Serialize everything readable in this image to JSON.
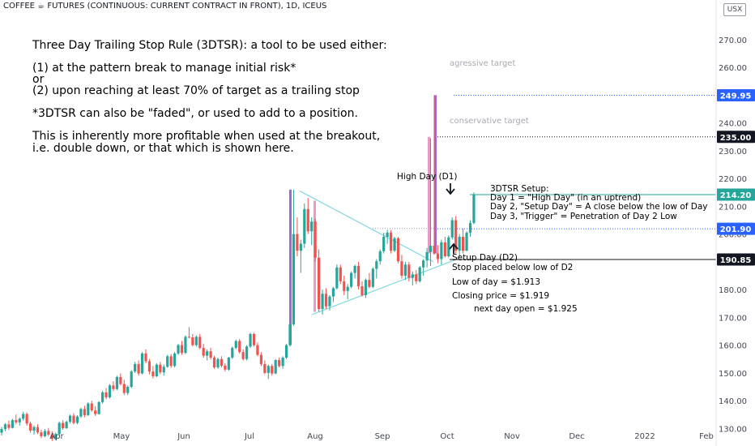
{
  "header": {
    "title": "COFFEE ☕ FUTURES (CONTINUOUS: CURRENT CONTRACT IN FRONT), 1D, ICEUS",
    "currency": "USX"
  },
  "notes": {
    "main_1": "Three Day Trailing Stop Rule (3DTSR): a tool to be used either:",
    "main_2": "(1) at the pattern break to manage initial risk*",
    "main_3": "or",
    "main_4": "(2) upon reaching at least 70% of target as a trailing stop",
    "main_5": "*3DTSR can also be \"faded\", or used to add to a position.",
    "main_6": "This is inherently more profitable when used at the breakout,",
    "main_7": "i.e. double down, or that which is shown here.",
    "aggressive": "agressive target",
    "conservative": "conservative target",
    "high_day": "High Day (D1)",
    "setup_1": "3DTSR Setup:",
    "setup_2": "Day 1 = \"High Day\" (in an uptrend)",
    "setup_3": "Day 2, \"Setup Day\" = A close below the low of Day",
    "setup_4": "Day 3, \"Trigger\" = Penetration of Day 2 Low",
    "d2_1": "Setup Day (D2)",
    "d2_2": "Stop placed below low of D2",
    "low_day": "Low of day = $1.913",
    "closing": "Closing price = $1.919",
    "next_open": "next day open = $1.925"
  },
  "chart_data": {
    "type": "candlestick",
    "title": "",
    "symbol": "Coffee Futures (Continuous: Current Contract in Front)",
    "interval": "1D",
    "exchange": "ICEUS",
    "y_unit": "USX",
    "ylim": [
      125,
      275
    ],
    "y_ticks": [
      130,
      140,
      150,
      160,
      170,
      180,
      190,
      200,
      210,
      220,
      230,
      240,
      250,
      260,
      270
    ],
    "y_tick_labels": [
      "130.00",
      "140.00",
      "150.00",
      "160.00",
      "170.00",
      "180.00",
      "190.00",
      "200.00",
      "210.00",
      "220.00",
      "230.00",
      "240.00",
      "250.00",
      "260.00",
      "270.00"
    ],
    "x_tick_labels": [
      "Apr",
      "May",
      "Jun",
      "Jul",
      "Aug",
      "Sep",
      "Oct",
      "Nov",
      "Dec",
      "2022",
      "Feb"
    ],
    "grid": false,
    "up_color": "#26a69a",
    "down_color": "#ef5350",
    "levels": [
      {
        "value": 249.95,
        "label": "249.95",
        "color": "#2962ff",
        "style": "dotted"
      },
      {
        "value": 235.0,
        "label": "235.00",
        "color": "#131722",
        "style": "dotted"
      },
      {
        "value": 214.2,
        "label": "214.20",
        "color": "#26a69a",
        "style": "solid"
      },
      {
        "value": 201.9,
        "label": "201.90",
        "color": "#2962ff",
        "style": "dotted"
      },
      {
        "value": 190.85,
        "label": "190.85",
        "color": "#131722",
        "style": "solid"
      }
    ],
    "pattern_color": "#7fd8e0",
    "pole_color": "#9c6ad6",
    "candles": [
      [
        128.5,
        130.5,
        127.5,
        129.8
      ],
      [
        129.8,
        132.0,
        129.0,
        131.5
      ],
      [
        131.5,
        132.8,
        129.5,
        130.2
      ],
      [
        130.2,
        133.5,
        130.0,
        133.0
      ],
      [
        133.0,
        135.0,
        131.5,
        132.2
      ],
      [
        132.2,
        134.0,
        131.0,
        133.5
      ],
      [
        133.5,
        136.0,
        132.8,
        135.2
      ],
      [
        135.2,
        135.8,
        131.0,
        131.8
      ],
      [
        131.8,
        132.5,
        128.5,
        129.2
      ],
      [
        129.2,
        131.0,
        127.8,
        130.5
      ],
      [
        130.5,
        131.5,
        128.0,
        128.6
      ],
      [
        128.6,
        129.5,
        126.5,
        127.2
      ],
      [
        127.2,
        129.8,
        126.8,
        129.1
      ],
      [
        129.1,
        130.2,
        127.2,
        127.8
      ],
      [
        127.8,
        129.0,
        125.5,
        126.2
      ],
      [
        126.2,
        128.5,
        125.8,
        128.0
      ],
      [
        128.0,
        132.5,
        127.5,
        132.0
      ],
      [
        132.0,
        133.0,
        129.5,
        130.1
      ],
      [
        130.1,
        132.8,
        129.8,
        132.4
      ],
      [
        132.4,
        135.0,
        131.8,
        134.6
      ],
      [
        134.6,
        135.5,
        131.5,
        132.0
      ],
      [
        132.0,
        134.8,
        131.5,
        134.3
      ],
      [
        134.3,
        137.5,
        133.8,
        137.0
      ],
      [
        137.0,
        138.2,
        134.0,
        134.8
      ],
      [
        134.8,
        139.5,
        134.5,
        139.0
      ],
      [
        139.0,
        140.0,
        136.0,
        136.5
      ],
      [
        136.5,
        138.0,
        134.5,
        135.2
      ],
      [
        135.2,
        139.8,
        135.0,
        139.5
      ],
      [
        139.5,
        143.5,
        139.0,
        143.0
      ],
      [
        143.0,
        144.5,
        140.5,
        141.2
      ],
      [
        141.2,
        146.0,
        140.8,
        145.5
      ],
      [
        145.5,
        147.0,
        143.5,
        144.2
      ],
      [
        144.2,
        149.0,
        143.8,
        148.5
      ],
      [
        148.5,
        149.8,
        145.5,
        146.0
      ],
      [
        146.0,
        147.5,
        142.0,
        142.8
      ],
      [
        142.8,
        145.5,
        142.0,
        145.0
      ],
      [
        145.0,
        151.0,
        144.5,
        150.5
      ],
      [
        150.5,
        154.0,
        150.0,
        153.2
      ],
      [
        153.2,
        154.5,
        149.0,
        149.8
      ],
      [
        149.8,
        157.5,
        149.5,
        157.0
      ],
      [
        157.0,
        158.5,
        153.5,
        154.2
      ],
      [
        154.2,
        155.0,
        149.5,
        150.5
      ],
      [
        150.5,
        152.5,
        148.0,
        148.8
      ],
      [
        148.8,
        153.5,
        148.5,
        153.0
      ],
      [
        153.0,
        154.0,
        149.5,
        150.2
      ],
      [
        150.2,
        153.0,
        149.0,
        152.2
      ],
      [
        152.2,
        156.5,
        151.8,
        156.0
      ],
      [
        156.0,
        156.8,
        151.8,
        152.5
      ],
      [
        152.5,
        157.5,
        152.0,
        157.0
      ],
      [
        157.0,
        160.5,
        156.5,
        160.0
      ],
      [
        160.0,
        161.5,
        156.5,
        157.2
      ],
      [
        157.2,
        163.5,
        156.8,
        163.0
      ],
      [
        163.0,
        166.5,
        162.5,
        162.8
      ],
      [
        162.8,
        164.0,
        159.5,
        160.0
      ],
      [
        160.0,
        163.5,
        159.5,
        163.0
      ],
      [
        163.0,
        164.0,
        158.5,
        159.0
      ],
      [
        159.0,
        160.5,
        155.5,
        156.2
      ],
      [
        156.2,
        158.5,
        154.5,
        157.8
      ],
      [
        157.8,
        159.0,
        154.8,
        155.5
      ],
      [
        155.5,
        156.2,
        151.5,
        152.0
      ],
      [
        152.0,
        155.5,
        151.5,
        155.0
      ],
      [
        155.0,
        156.0,
        152.0,
        152.6
      ],
      [
        152.6,
        153.5,
        150.5,
        151.2
      ],
      [
        151.2,
        155.8,
        150.8,
        155.5
      ],
      [
        155.5,
        159.5,
        155.0,
        159.0
      ],
      [
        159.0,
        162.0,
        158.5,
        161.5
      ],
      [
        161.5,
        162.2,
        157.0,
        157.5
      ],
      [
        157.5,
        158.5,
        154.5,
        155.0
      ],
      [
        155.0,
        160.0,
        154.5,
        159.5
      ],
      [
        159.5,
        164.5,
        159.0,
        164.0
      ],
      [
        164.0,
        164.5,
        159.5,
        160.0
      ],
      [
        160.0,
        161.0,
        156.0,
        156.5
      ],
      [
        156.5,
        157.5,
        152.5,
        153.2
      ],
      [
        153.2,
        154.5,
        149.5,
        150.0
      ],
      [
        150.0,
        153.0,
        147.8,
        152.5
      ],
      [
        152.5,
        153.2,
        149.0,
        149.8
      ],
      [
        149.8,
        155.0,
        149.5,
        154.6
      ],
      [
        154.6,
        155.5,
        152.0,
        152.5
      ],
      [
        152.5,
        156.0,
        151.5,
        155.5
      ],
      [
        155.5,
        160.5,
        155.0,
        160.0
      ],
      [
        160.0,
        168.0,
        159.5,
        167.5
      ],
      [
        167.5,
        216.0,
        167.0,
        200.0
      ],
      [
        200.0,
        206.0,
        192.0,
        194.0
      ],
      [
        194.0,
        198.0,
        186.0,
        196.5
      ],
      [
        196.5,
        211.0,
        195.0,
        209.0
      ],
      [
        209.0,
        213.0,
        200.0,
        201.0
      ],
      [
        201.0,
        206.0,
        196.0,
        204.5
      ],
      [
        204.5,
        205.5,
        190.0,
        191.5
      ],
      [
        191.5,
        194.5,
        172.0,
        173.0
      ],
      [
        173.0,
        180.0,
        171.0,
        178.5
      ],
      [
        178.5,
        180.5,
        173.0,
        174.0
      ],
      [
        174.0,
        178.0,
        172.5,
        177.5
      ],
      [
        177.5,
        181.0,
        175.5,
        180.5
      ],
      [
        180.5,
        189.0,
        180.0,
        188.0
      ],
      [
        188.0,
        189.0,
        182.0,
        183.0
      ],
      [
        183.0,
        185.0,
        178.0,
        179.5
      ],
      [
        179.5,
        182.0,
        176.5,
        181.0
      ],
      [
        181.0,
        186.5,
        180.5,
        186.0
      ],
      [
        186.0,
        189.0,
        184.0,
        188.5
      ],
      [
        188.5,
        190.0,
        180.0,
        181.2
      ],
      [
        181.2,
        183.0,
        177.5,
        178.0
      ],
      [
        178.0,
        184.0,
        177.0,
        183.5
      ],
      [
        183.5,
        186.0,
        180.5,
        181.0
      ],
      [
        181.0,
        188.0,
        180.5,
        187.5
      ],
      [
        187.5,
        191.0,
        184.0,
        190.2
      ],
      [
        190.2,
        194.5,
        189.0,
        193.8
      ],
      [
        193.8,
        200.5,
        193.0,
        199.0
      ],
      [
        199.0,
        201.5,
        196.5,
        200.5
      ],
      [
        200.5,
        201.5,
        193.0,
        194.0
      ],
      [
        194.0,
        199.0,
        193.5,
        198.5
      ],
      [
        198.5,
        199.0,
        189.5,
        190.2
      ],
      [
        190.2,
        192.5,
        184.0,
        185.0
      ],
      [
        185.0,
        190.0,
        183.5,
        189.0
      ],
      [
        189.0,
        190.0,
        183.0,
        184.2
      ],
      [
        184.2,
        186.5,
        181.5,
        185.5
      ],
      [
        185.5,
        187.0,
        182.0,
        183.0
      ],
      [
        183.0,
        188.5,
        182.5,
        188.0
      ],
      [
        188.0,
        191.0,
        185.0,
        190.5
      ],
      [
        190.5,
        195.0,
        188.0,
        193.5
      ],
      [
        193.5,
        234.5,
        188.5,
        195.8
      ],
      [
        195.8,
        250.0,
        192.5,
        193.0
      ],
      [
        193.0,
        196.0,
        189.5,
        191.0
      ],
      [
        191.0,
        198.0,
        189.0,
        197.0
      ],
      [
        197.0,
        199.0,
        191.5,
        192.0
      ],
      [
        192.0,
        199.5,
        191.5,
        198.8
      ],
      [
        198.8,
        206.0,
        198.0,
        205.0
      ],
      [
        205.0,
        206.5,
        193.0,
        194.0
      ],
      [
        194.0,
        200.0,
        191.3,
        199.0
      ],
      [
        199.0,
        202.0,
        193.0,
        194.0
      ],
      [
        194.0,
        201.0,
        193.8,
        200.5
      ],
      [
        200.5,
        205.0,
        199.0,
        204.0
      ],
      [
        204.0,
        215.0,
        203.5,
        214.2
      ]
    ]
  }
}
